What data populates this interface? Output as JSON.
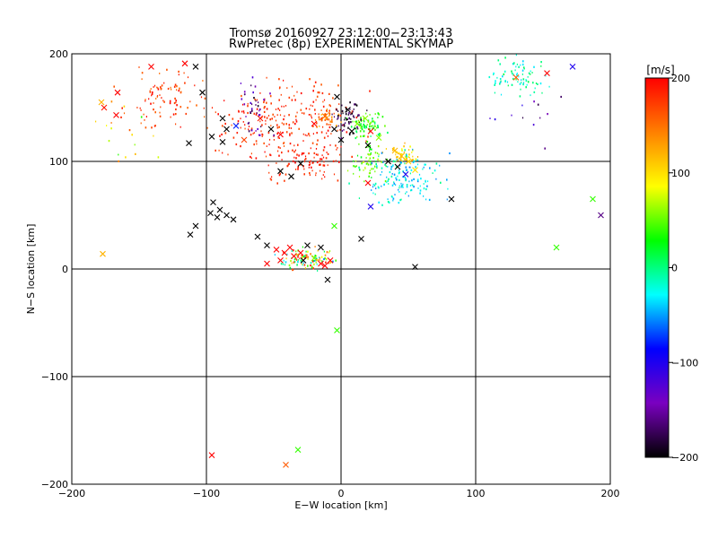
{
  "chart_data": {
    "type": "scatter",
    "title_line1": "Tromsø 20160927 23:12:00−23:13:43",
    "title_line2": "RwPretec (8p) EXPERIMENTAL SKYMAP",
    "xlabel": "E−W location [km]",
    "ylabel": "N−S location [km]",
    "xlim": [
      -200,
      200
    ],
    "ylim": [
      -200,
      200
    ],
    "x_ticks": [
      "−200",
      "−100",
      "0",
      "100",
      "200"
    ],
    "y_ticks": [
      "−200",
      "−100",
      "0",
      "100",
      "200"
    ],
    "x_tick_values": [
      -200,
      -100,
      0,
      100,
      200
    ],
    "y_tick_values": [
      -200,
      -100,
      0,
      100,
      200
    ],
    "grid": true,
    "colorbar": {
      "unit": "[m/s]",
      "range": [
        -200,
        200
      ],
      "tick_labels": [
        "200",
        "100",
        "0",
        "−100",
        "−200"
      ],
      "tick_values": [
        200,
        100,
        0,
        -100,
        -200
      ]
    },
    "colormap": [
      "#000000",
      "#7a00c0",
      "#0000ff",
      "#00ffff",
      "#00ff00",
      "#ffff00",
      "#ff8000",
      "#ff0000"
    ],
    "cross_points": [
      {
        "x": -178,
        "y": 155,
        "v": 120
      },
      {
        "x": -176,
        "y": 150,
        "v": 190
      },
      {
        "x": -166,
        "y": 164,
        "v": 200
      },
      {
        "x": -167,
        "y": 143,
        "v": 200
      },
      {
        "x": -141,
        "y": 188,
        "v": 200
      },
      {
        "x": -116,
        "y": 191,
        "v": 200
      },
      {
        "x": -108,
        "y": 188,
        "v": -200
      },
      {
        "x": -103,
        "y": 164,
        "v": -200
      },
      {
        "x": -88,
        "y": 140,
        "v": -200
      },
      {
        "x": -85,
        "y": 130,
        "v": -200
      },
      {
        "x": -96,
        "y": 123,
        "v": -200
      },
      {
        "x": -88,
        "y": 118,
        "v": -200
      },
      {
        "x": -78,
        "y": 133,
        "v": -80
      },
      {
        "x": -72,
        "y": 120,
        "v": 170
      },
      {
        "x": -60,
        "y": 140,
        "v": 190
      },
      {
        "x": -52,
        "y": 130,
        "v": -200
      },
      {
        "x": -45,
        "y": 125,
        "v": 200
      },
      {
        "x": -113,
        "y": 117,
        "v": -200
      },
      {
        "x": -95,
        "y": 62,
        "v": -200
      },
      {
        "x": -90,
        "y": 55,
        "v": -200
      },
      {
        "x": -97,
        "y": 52,
        "v": -200
      },
      {
        "x": -85,
        "y": 50,
        "v": -200
      },
      {
        "x": -80,
        "y": 46,
        "v": -200
      },
      {
        "x": -108,
        "y": 40,
        "v": -200
      },
      {
        "x": -112,
        "y": 32,
        "v": -200
      },
      {
        "x": -92,
        "y": 48,
        "v": -200
      },
      {
        "x": -45,
        "y": 91,
        "v": -200
      },
      {
        "x": -37,
        "y": 86,
        "v": -200
      },
      {
        "x": -30,
        "y": 98,
        "v": -200
      },
      {
        "x": -62,
        "y": 30,
        "v": -200
      },
      {
        "x": -55,
        "y": 22,
        "v": -200
      },
      {
        "x": -48,
        "y": 18,
        "v": 200
      },
      {
        "x": -42,
        "y": 15,
        "v": 200
      },
      {
        "x": -38,
        "y": 20,
        "v": 200
      },
      {
        "x": -35,
        "y": 12,
        "v": 200
      },
      {
        "x": -30,
        "y": 15,
        "v": 200
      },
      {
        "x": -45,
        "y": 8,
        "v": 200
      },
      {
        "x": -55,
        "y": 5,
        "v": 200
      },
      {
        "x": -25,
        "y": 22,
        "v": -200
      },
      {
        "x": -28,
        "y": 8,
        "v": -200
      },
      {
        "x": -20,
        "y": 10,
        "v": 60
      },
      {
        "x": -15,
        "y": 5,
        "v": 200
      },
      {
        "x": -12,
        "y": 3,
        "v": 200
      },
      {
        "x": -8,
        "y": 8,
        "v": 200
      },
      {
        "x": -10,
        "y": -10,
        "v": -200
      },
      {
        "x": -5,
        "y": 40,
        "v": 40
      },
      {
        "x": -15,
        "y": 20,
        "v": -200
      },
      {
        "x": 55,
        "y": 2,
        "v": -200
      },
      {
        "x": -20,
        "y": 135,
        "v": 200
      },
      {
        "x": -12,
        "y": 142,
        "v": 150
      },
      {
        "x": -5,
        "y": 130,
        "v": -200
      },
      {
        "x": 0,
        "y": 120,
        "v": -200
      },
      {
        "x": 8,
        "y": 128,
        "v": -200
      },
      {
        "x": 12,
        "y": 135,
        "v": 60
      },
      {
        "x": 18,
        "y": 140,
        "v": 60
      },
      {
        "x": 22,
        "y": 128,
        "v": 200
      },
      {
        "x": 28,
        "y": 122,
        "v": 60
      },
      {
        "x": -3,
        "y": 160,
        "v": -200
      },
      {
        "x": 5,
        "y": 148,
        "v": -200
      },
      {
        "x": 40,
        "y": 110,
        "v": 120
      },
      {
        "x": 45,
        "y": 105,
        "v": 120
      },
      {
        "x": 50,
        "y": 100,
        "v": 110
      },
      {
        "x": 42,
        "y": 95,
        "v": -200
      },
      {
        "x": 48,
        "y": 88,
        "v": -100
      },
      {
        "x": 55,
        "y": 92,
        "v": 100
      },
      {
        "x": 20,
        "y": 115,
        "v": -200
      },
      {
        "x": 35,
        "y": 100,
        "v": -200
      },
      {
        "x": 82,
        "y": 65,
        "v": -200
      },
      {
        "x": 20,
        "y": 80,
        "v": 200
      },
      {
        "x": 22,
        "y": 58,
        "v": -100
      },
      {
        "x": 15,
        "y": 28,
        "v": -200
      },
      {
        "x": -3,
        "y": -57,
        "v": 40
      },
      {
        "x": 153,
        "y": 182,
        "v": 200
      },
      {
        "x": 172,
        "y": 188,
        "v": -100
      },
      {
        "x": 130,
        "y": 178,
        "v": 160
      },
      {
        "x": 187,
        "y": 65,
        "v": 40
      },
      {
        "x": 193,
        "y": 50,
        "v": -160
      },
      {
        "x": 160,
        "y": 20,
        "v": 40
      },
      {
        "x": -177,
        "y": 14,
        "v": 120
      },
      {
        "x": -96,
        "y": -173,
        "v": 200
      },
      {
        "x": -41,
        "y": -182,
        "v": 160
      },
      {
        "x": -32,
        "y": -168,
        "v": 40
      }
    ],
    "dot_clusters": [
      {
        "cx": -40,
        "cy": 135,
        "sx": 42,
        "sy": 35,
        "n": 260,
        "vmin": 160,
        "vmax": 200
      },
      {
        "cx": -130,
        "cy": 160,
        "sx": 25,
        "sy": 22,
        "n": 90,
        "vmin": 150,
        "vmax": 200
      },
      {
        "cx": -25,
        "cy": 100,
        "sx": 20,
        "sy": 14,
        "n": 70,
        "vmin": 170,
        "vmax": 200
      },
      {
        "cx": -10,
        "cy": 140,
        "sx": 8,
        "sy": 7,
        "n": 45,
        "vmin": 110,
        "vmax": 180
      },
      {
        "cx": 20,
        "cy": 135,
        "sx": 10,
        "sy": 12,
        "n": 80,
        "vmin": 0,
        "vmax": 60
      },
      {
        "cx": 45,
        "cy": 105,
        "sx": 10,
        "sy": 8,
        "n": 55,
        "vmin": 80,
        "vmax": 130
      },
      {
        "cx": 45,
        "cy": 85,
        "sx": 25,
        "sy": 20,
        "n": 160,
        "vmin": -60,
        "vmax": 0
      },
      {
        "cx": 20,
        "cy": 100,
        "sx": 12,
        "sy": 15,
        "n": 60,
        "vmin": 20,
        "vmax": 80
      },
      {
        "cx": 5,
        "cy": 140,
        "sx": 10,
        "sy": 15,
        "n": 60,
        "vmin": -200,
        "vmax": -160
      },
      {
        "cx": -25,
        "cy": 10,
        "sx": 18,
        "sy": 8,
        "n": 110,
        "vmin": -60,
        "vmax": 200
      },
      {
        "cx": -65,
        "cy": 150,
        "sx": 10,
        "sy": 25,
        "n": 40,
        "vmin": -200,
        "vmax": -120
      },
      {
        "cx": 130,
        "cy": 180,
        "sx": 20,
        "sy": 15,
        "n": 80,
        "vmin": -40,
        "vmax": 20
      },
      {
        "cx": 140,
        "cy": 140,
        "sx": 25,
        "sy": 20,
        "n": 12,
        "vmin": -200,
        "vmax": -100
      },
      {
        "cx": -160,
        "cy": 130,
        "sx": 20,
        "sy": 40,
        "n": 20,
        "vmin": 20,
        "vmax": 200
      }
    ]
  }
}
